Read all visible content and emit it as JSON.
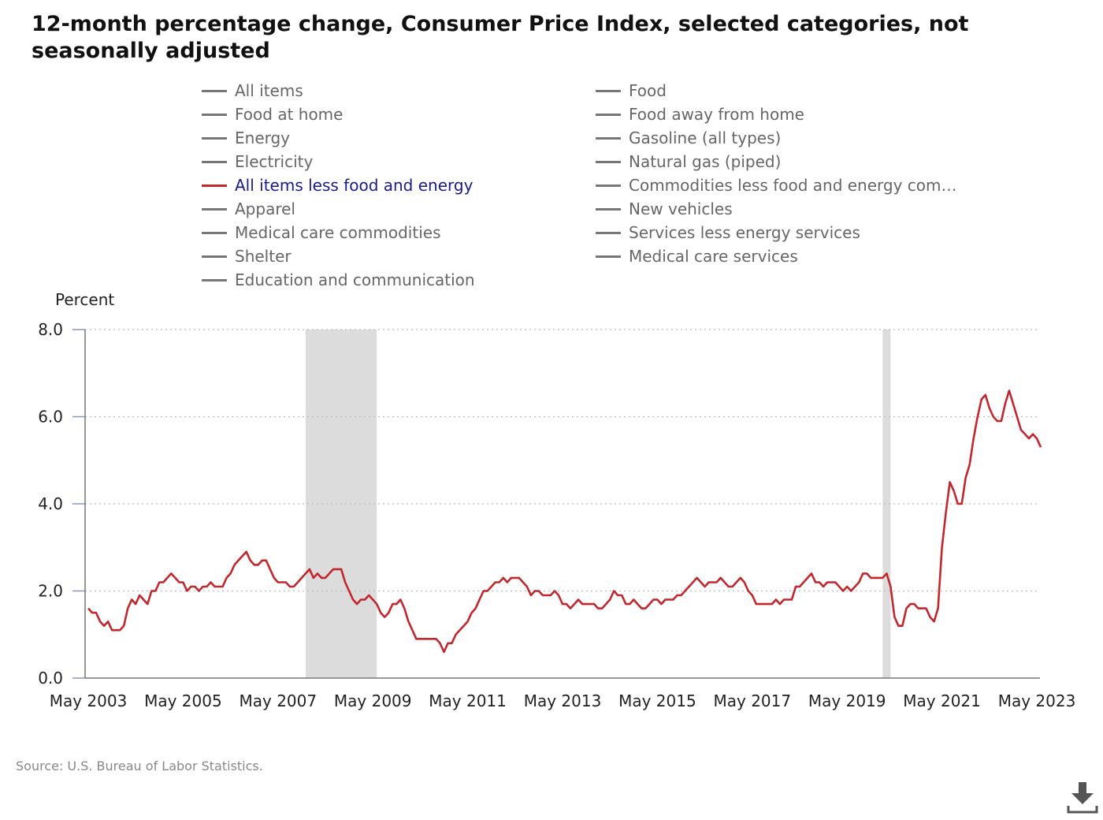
{
  "title": "12-month percentage change, Consumer Price Index, selected categories, not seasonally adjusted",
  "source": "Source: U.S. Bureau of Labor Statistics.",
  "colors": {
    "series_line": "#c1272d",
    "inactive_legend": "#777777",
    "active_label": "#1a1a8c",
    "recession_band": "#dcdcdc",
    "grid": "#bbbbbb"
  },
  "legend": [
    {
      "label": "All items",
      "active": false
    },
    {
      "label": "Food",
      "active": false
    },
    {
      "label": "Food at home",
      "active": false
    },
    {
      "label": "Food away from home",
      "active": false
    },
    {
      "label": "Energy",
      "active": false
    },
    {
      "label": "Gasoline (all types)",
      "active": false
    },
    {
      "label": "Electricity",
      "active": false
    },
    {
      "label": "Natural gas (piped)",
      "active": false
    },
    {
      "label": "All items less food and energy",
      "active": true
    },
    {
      "label": "Commodities less food and energy com…",
      "active": false
    },
    {
      "label": "Apparel",
      "active": false
    },
    {
      "label": "New vehicles",
      "active": false
    },
    {
      "label": "Medical care commodities",
      "active": false
    },
    {
      "label": "Services less energy services",
      "active": false
    },
    {
      "label": "Shelter",
      "active": false
    },
    {
      "label": "Medical care services",
      "active": false
    },
    {
      "label": "Education and communication",
      "active": false
    }
  ],
  "icons": {
    "download": "download-icon"
  },
  "chart_data": {
    "type": "line",
    "ylabel": "Percent",
    "ylim": [
      0,
      8
    ],
    "y_ticks": [
      "0.0",
      "2.0",
      "4.0",
      "6.0",
      "8.0"
    ],
    "x_ticks": [
      "May 2003",
      "May 2005",
      "May 2007",
      "May 2009",
      "May 2011",
      "May 2013",
      "May 2015",
      "May 2017",
      "May 2019",
      "May 2021",
      "May 2023"
    ],
    "x_range": [
      "2003-05",
      "2023-05"
    ],
    "grid": true,
    "recessions": [
      {
        "start": "2007-12",
        "end": "2009-06"
      },
      {
        "start": "2020-02",
        "end": "2020-04"
      }
    ],
    "series": [
      {
        "name": "All items less food and energy",
        "start": "2003-05",
        "frequency": "monthly",
        "values": [
          1.6,
          1.5,
          1.5,
          1.3,
          1.2,
          1.3,
          1.1,
          1.1,
          1.1,
          1.2,
          1.6,
          1.8,
          1.7,
          1.9,
          1.8,
          1.7,
          2.0,
          2.0,
          2.2,
          2.2,
          2.3,
          2.4,
          2.3,
          2.2,
          2.2,
          2.0,
          2.1,
          2.1,
          2.0,
          2.1,
          2.1,
          2.2,
          2.1,
          2.1,
          2.1,
          2.3,
          2.4,
          2.6,
          2.7,
          2.8,
          2.9,
          2.7,
          2.6,
          2.6,
          2.7,
          2.7,
          2.5,
          2.3,
          2.2,
          2.2,
          2.2,
          2.1,
          2.1,
          2.2,
          2.3,
          2.4,
          2.5,
          2.3,
          2.4,
          2.3,
          2.3,
          2.4,
          2.5,
          2.5,
          2.5,
          2.2,
          2.0,
          1.8,
          1.7,
          1.8,
          1.8,
          1.9,
          1.8,
          1.7,
          1.5,
          1.4,
          1.5,
          1.7,
          1.7,
          1.8,
          1.6,
          1.3,
          1.1,
          0.9,
          0.9,
          0.9,
          0.9,
          0.9,
          0.9,
          0.8,
          0.6,
          0.8,
          0.8,
          1.0,
          1.1,
          1.2,
          1.3,
          1.5,
          1.6,
          1.8,
          2.0,
          2.0,
          2.1,
          2.2,
          2.2,
          2.3,
          2.2,
          2.3,
          2.3,
          2.3,
          2.2,
          2.1,
          1.9,
          2.0,
          2.0,
          1.9,
          1.9,
          1.9,
          2.0,
          1.9,
          1.7,
          1.7,
          1.6,
          1.7,
          1.8,
          1.7,
          1.7,
          1.7,
          1.7,
          1.6,
          1.6,
          1.7,
          1.8,
          2.0,
          1.9,
          1.9,
          1.7,
          1.7,
          1.8,
          1.7,
          1.6,
          1.6,
          1.7,
          1.8,
          1.8,
          1.7,
          1.8,
          1.8,
          1.8,
          1.9,
          1.9,
          2.0,
          2.1,
          2.2,
          2.3,
          2.2,
          2.1,
          2.2,
          2.2,
          2.2,
          2.3,
          2.2,
          2.1,
          2.1,
          2.2,
          2.3,
          2.2,
          2.0,
          1.9,
          1.7,
          1.7,
          1.7,
          1.7,
          1.7,
          1.8,
          1.7,
          1.8,
          1.8,
          1.8,
          2.1,
          2.1,
          2.2,
          2.3,
          2.4,
          2.2,
          2.2,
          2.1,
          2.2,
          2.2,
          2.2,
          2.1,
          2.0,
          2.1,
          2.0,
          2.1,
          2.2,
          2.4,
          2.4,
          2.3,
          2.3,
          2.3,
          2.3,
          2.4,
          2.1,
          1.4,
          1.2,
          1.2,
          1.6,
          1.7,
          1.7,
          1.6,
          1.6,
          1.6,
          1.4,
          1.3,
          1.6,
          3.0,
          3.8,
          4.5,
          4.3,
          4.0,
          4.0,
          4.6,
          4.9,
          5.5,
          6.0,
          6.4,
          6.5,
          6.2,
          6.0,
          5.9,
          5.9,
          6.3,
          6.6,
          6.3,
          6.0,
          5.7,
          5.6,
          5.5,
          5.6,
          5.5,
          5.3
        ]
      }
    ]
  }
}
